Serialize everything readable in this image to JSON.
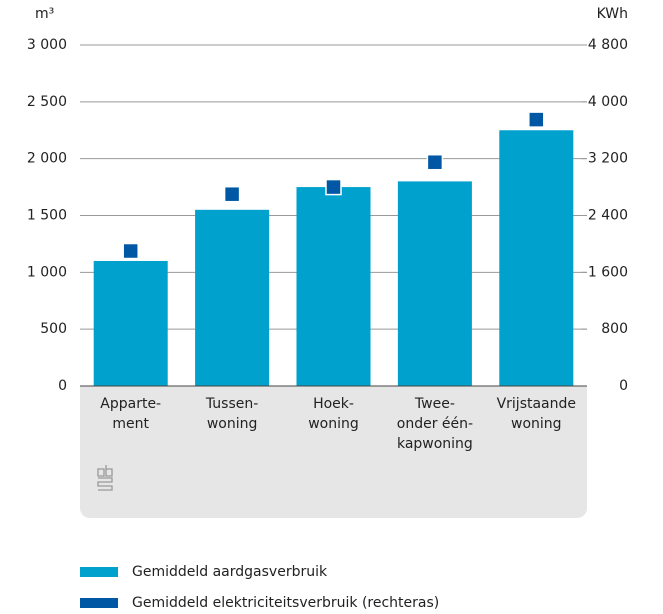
{
  "chart_data": {
    "type": "bar",
    "y_unit": "m³",
    "y2_unit": "KWh",
    "categories": [
      [
        "Apparte-",
        "ment"
      ],
      [
        "Tussen-",
        "woning"
      ],
      [
        "Hoek-",
        "woning"
      ],
      [
        "Twee-",
        "onder één-",
        "kapwoning"
      ],
      [
        "Vrijstaande",
        "woning"
      ]
    ],
    "series": [
      {
        "name": "Gemiddeld aardgasverbruik",
        "color": "#00a1cd",
        "type": "bar",
        "values": [
          1100,
          1550,
          1750,
          1800,
          2250
        ]
      },
      {
        "name": "Gemiddeld elektriciteitsverbruik (rechteras)",
        "color": "#0058a4",
        "type": "marker",
        "axis": "y2",
        "values": [
          1900,
          2700,
          2800,
          3150,
          3750
        ]
      }
    ],
    "ylim": [
      0,
      3000
    ],
    "yticks": [
      0,
      500,
      {
        "value": 1000,
        "label": "1 000"
      },
      {
        "value": 1500,
        "label": "1 500"
      },
      {
        "value": 2000,
        "label": "2 000"
      },
      {
        "value": 2500,
        "label": "2 500"
      },
      {
        "value": 3000,
        "label": "3 000"
      }
    ],
    "y2lim": [
      0,
      4800
    ],
    "y2ticks": [
      0,
      800,
      {
        "value": 1600,
        "label": "1 600"
      },
      {
        "value": 2400,
        "label": "2 400"
      },
      {
        "value": 3200,
        "label": "3 200"
      },
      {
        "value": 4000,
        "label": "4 000"
      },
      {
        "value": 4800,
        "label": "4 800"
      }
    ],
    "grid": true
  }
}
